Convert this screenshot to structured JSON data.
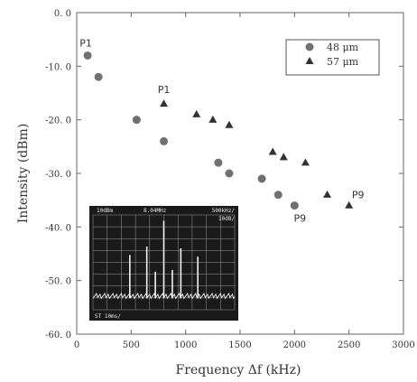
{
  "chart_data": {
    "type": "scatter",
    "xlabel": "Frequency  Δf (kHz)",
    "ylabel": "Intensity (dBm)",
    "xlim": [
      0,
      3000
    ],
    "ylim": [
      -60,
      0
    ],
    "x_ticks": [
      "0",
      "500",
      "1000",
      "1500",
      "2000",
      "2500",
      "3000"
    ],
    "y_ticks": [
      "0. 0",
      "-10. 0",
      "-20. 0",
      "-30. 0",
      "-40. 0",
      "-50. 0",
      "-60. 0"
    ],
    "grid": false,
    "legend_position": "top-right",
    "series": [
      {
        "name": "48 μm",
        "marker": "circle",
        "color": "#707070",
        "points": [
          {
            "x": 100,
            "y": -8
          },
          {
            "x": 200,
            "y": -12
          },
          {
            "x": 550,
            "y": -20
          },
          {
            "x": 800,
            "y": -24
          },
          {
            "x": 1300,
            "y": -28
          },
          {
            "x": 1400,
            "y": -30
          },
          {
            "x": 1700,
            "y": -31
          },
          {
            "x": 1850,
            "y": -34
          },
          {
            "x": 2000,
            "y": -36
          }
        ]
      },
      {
        "name": "57 μm",
        "marker": "triangle",
        "color": "#333333",
        "points": [
          {
            "x": 800,
            "y": -17
          },
          {
            "x": 1100,
            "y": -19
          },
          {
            "x": 1250,
            "y": -20
          },
          {
            "x": 1400,
            "y": -21
          },
          {
            "x": 1800,
            "y": -26
          },
          {
            "x": 1900,
            "y": -27
          },
          {
            "x": 2100,
            "y": -28
          },
          {
            "x": 2300,
            "y": -34
          },
          {
            "x": 2500,
            "y": -36
          }
        ]
      }
    ],
    "annotations": [
      {
        "text": "P1",
        "x": 100,
        "y": -8,
        "anchor": "above-left"
      },
      {
        "text": "P1",
        "x": 800,
        "y": -17,
        "anchor": "above"
      },
      {
        "text": "P9",
        "x": 2000,
        "y": -36,
        "anchor": "below"
      },
      {
        "text": "P9",
        "x": 2500,
        "y": -36,
        "anchor": "above-right"
      }
    ],
    "inset": {
      "description_text": [
        "10dBm",
        "8.04MHz",
        "500kHz/",
        "10dB/",
        "ST 10ms/"
      ],
      "spectrum_peaks": [
        {
          "x_frac": 0.26,
          "level": 0.52
        },
        {
          "x_frac": 0.38,
          "level": 0.62
        },
        {
          "x_frac": 0.5,
          "level": 0.93
        },
        {
          "x_frac": 0.62,
          "level": 0.6
        },
        {
          "x_frac": 0.74,
          "level": 0.5
        },
        {
          "x_frac": 0.44,
          "level": 0.32
        },
        {
          "x_frac": 0.56,
          "level": 0.34
        }
      ]
    }
  }
}
